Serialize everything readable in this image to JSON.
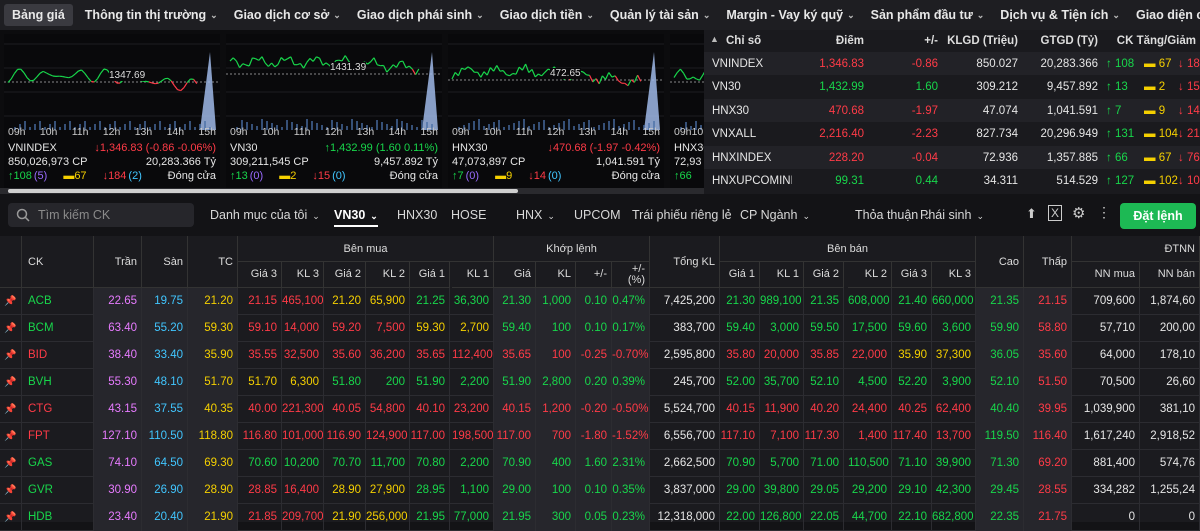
{
  "nav": [
    "Bảng giá",
    "Thông tin thị trường",
    "Giao dịch cơ sở",
    "Giao dịch phái sinh",
    "Giao dịch tiền",
    "Quản lý tài sản",
    "Margin - Vay ký quỹ",
    "Sản phẩm đầu tư",
    "Dịch vụ & Tiện ích",
    "Giao diện của tôi"
  ],
  "charts": [
    {
      "name": "VNINDEX",
      "ref_label": "1347.69",
      "value": "↓1,346.83 (-0.86 -0.06%)",
      "volume": "850,026,973 CP",
      "amount": "20,283.366 Tỷ",
      "up": "↑108",
      "up_ce": "(5)",
      "ref": "▬67",
      "dn": "↓184",
      "dn_fl": "(2)",
      "status": "Đóng cửa",
      "dir": "dn"
    },
    {
      "name": "VN30",
      "ref_label": "1431.39",
      "value": "↑1,432.99 (1.60 0.11%)",
      "volume": "309,211,545 CP",
      "amount": "9,457.892 Tỷ",
      "up": "↑13",
      "up_ce": "(0)",
      "ref": "▬2",
      "dn": "↓15",
      "dn_fl": "(0)",
      "status": "Đóng cửa",
      "dir": "up"
    },
    {
      "name": "HNX30",
      "ref_label": "472.65",
      "value": "↓470.68 (-1.97 -0.42%)",
      "volume": "47,073,897 CP",
      "amount": "1,041.591 Tỷ",
      "up": "↑7",
      "up_ce": "(0)",
      "ref": "▬9",
      "dn": "↓14",
      "dn_fl": "(0)",
      "status": "Đóng cửa",
      "dir": "dn"
    },
    {
      "name": "HNX30",
      "ref_label": "",
      "value": "",
      "volume": "72,93",
      "amount": "",
      "up": "↑66",
      "up_ce": "",
      "ref": "",
      "dn": "",
      "dn_fl": "",
      "status": "",
      "dir": "dn"
    }
  ],
  "time_labels": [
    "09h",
    "10h",
    "11h",
    "12h",
    "13h",
    "14h",
    "15h"
  ],
  "index_table": {
    "headers": [
      "Chỉ số",
      "Điểm",
      "+/-",
      "KLGD (Triệu)",
      "GTGD (Tỷ)",
      "CK Tăng/Giảm"
    ],
    "rows": [
      {
        "name": "VNINDEX",
        "point": "1,346.83",
        "change": "-0.86",
        "vol": "850.027",
        "val": "20,283.366",
        "up": "↑ 108",
        "ref": "▬ 67",
        "dn": "↓ 184",
        "c": "dn"
      },
      {
        "name": "VN30",
        "point": "1,432.99",
        "change": "1.60",
        "vol": "309.212",
        "val": "9,457.892",
        "up": "↑ 13",
        "ref": "▬ 2",
        "dn": "↓ 15",
        "c": "up"
      },
      {
        "name": "HNX30",
        "point": "470.68",
        "change": "-1.97",
        "vol": "47.074",
        "val": "1,041.591",
        "up": "↑ 7",
        "ref": "▬ 9",
        "dn": "↓ 14",
        "c": "dn"
      },
      {
        "name": "VNXALL",
        "point": "2,216.40",
        "change": "-2.23",
        "vol": "827.734",
        "val": "20,296.949",
        "up": "↑ 131",
        "ref": "▬ 104",
        "dn": "↓ 215",
        "c": "dn"
      },
      {
        "name": "HNXINDEX",
        "point": "228.20",
        "change": "-0.04",
        "vol": "72.936",
        "val": "1,357.885",
        "up": "↑ 66",
        "ref": "▬ 67",
        "dn": "↓ 76",
        "c": "dn"
      },
      {
        "name": "HNXUPCOMINDEX",
        "point": "99.31",
        "change": "0.44",
        "vol": "34.311",
        "val": "514.529",
        "up": "↑ 127",
        "ref": "▬ 102",
        "dn": "↓ 104",
        "c": "up"
      }
    ]
  },
  "filter": {
    "search_placeholder": "Tìm kiếm CK",
    "tabs": [
      "Danh mục của tôi",
      "VN30",
      "HNX30",
      "HOSE",
      "HNX",
      "UPCOM",
      "Trái phiếu riêng lẻ",
      "CP Ngành",
      "Thỏa thuận",
      "Phái sinh"
    ],
    "order_button": "Đặt lệnh"
  },
  "board_headers": {
    "ck": "CK",
    "ceil": "Trần",
    "floor": "Sàn",
    "ref": "TC",
    "buy": "Bên mua",
    "match": "Khớp lệnh",
    "total": "Tổng KL",
    "sell": "Bên bán",
    "high": "Cao",
    "low": "Thấp",
    "foreign": "ĐTNN",
    "g3": "Giá 3",
    "kl3": "KL 3",
    "g2": "Giá 2",
    "kl2": "KL 2",
    "g1": "Giá 1",
    "kl1": "KL 1",
    "mp": "Giá",
    "mkl": "KL",
    "pm": "+/-",
    "pct": "+/-\n(%)",
    "nn_buy": "NN mua",
    "nn_sell": "NN bán"
  },
  "rows": [
    [
      "ACB",
      "22.65",
      "19.75",
      "21.20",
      "21.15",
      "465,100",
      "21.20",
      "65,900",
      "21.25",
      "36,300",
      "21.30",
      "1,000",
      "0.10",
      "0.47%",
      "7,425,200",
      "21.30",
      "989,100",
      "21.35",
      "608,000",
      "21.40",
      "660,000",
      "21.35",
      "21.15",
      "709,600",
      "1,874,60"
    ],
    [
      "BCM",
      "63.40",
      "55.20",
      "59.30",
      "59.10",
      "14,000",
      "59.20",
      "7,500",
      "59.30",
      "2,700",
      "59.40",
      "100",
      "0.10",
      "0.17%",
      "383,700",
      "59.40",
      "3,000",
      "59.50",
      "17,500",
      "59.60",
      "3,600",
      "59.90",
      "58.80",
      "57,710",
      "200,00"
    ],
    [
      "BID",
      "38.40",
      "33.40",
      "35.90",
      "35.55",
      "32,500",
      "35.60",
      "36,200",
      "35.65",
      "112,400",
      "35.65",
      "100",
      "-0.25",
      "-0.70%",
      "2,595,800",
      "35.80",
      "20,000",
      "35.85",
      "22,000",
      "35.90",
      "37,300",
      "36.05",
      "35.60",
      "64,000",
      "178,10"
    ],
    [
      "BVH",
      "55.30",
      "48.10",
      "51.70",
      "51.70",
      "6,300",
      "51.80",
      "200",
      "51.90",
      "2,200",
      "51.90",
      "2,800",
      "0.20",
      "0.39%",
      "245,700",
      "52.00",
      "35,700",
      "52.10",
      "4,500",
      "52.20",
      "3,900",
      "52.10",
      "51.50",
      "70,500",
      "26,60"
    ],
    [
      "CTG",
      "43.15",
      "37.55",
      "40.35",
      "40.00",
      "221,300",
      "40.05",
      "54,800",
      "40.10",
      "23,200",
      "40.15",
      "1,200",
      "-0.20",
      "-0.50%",
      "5,524,700",
      "40.15",
      "11,900",
      "40.20",
      "24,400",
      "40.25",
      "62,400",
      "40.40",
      "39.95",
      "1,039,900",
      "381,10"
    ],
    [
      "FPT",
      "127.10",
      "110.50",
      "118.80",
      "116.80",
      "101,000",
      "116.90",
      "124,900",
      "117.00",
      "198,500",
      "117.00",
      "700",
      "-1.80",
      "-1.52%",
      "6,556,700",
      "117.10",
      "7,100",
      "117.30",
      "1,400",
      "117.40",
      "13,700",
      "119.50",
      "116.40",
      "1,617,240",
      "2,918,52"
    ],
    [
      "GAS",
      "74.10",
      "64.50",
      "69.30",
      "70.60",
      "10,200",
      "70.70",
      "11,700",
      "70.80",
      "2,200",
      "70.90",
      "400",
      "1.60",
      "2.31%",
      "2,662,500",
      "70.90",
      "5,700",
      "71.00",
      "110,500",
      "71.10",
      "39,900",
      "71.30",
      "69.20",
      "881,400",
      "574,76"
    ],
    [
      "GVR",
      "30.90",
      "26.90",
      "28.90",
      "28.85",
      "16,400",
      "28.90",
      "27,900",
      "28.95",
      "1,100",
      "29.00",
      "100",
      "0.10",
      "0.35%",
      "3,837,000",
      "29.00",
      "39,800",
      "29.05",
      "29,200",
      "29.10",
      "42,300",
      "29.45",
      "28.55",
      "334,282",
      "1,255,24"
    ],
    [
      "HDB",
      "23.40",
      "20.40",
      "21.90",
      "21.85",
      "209,700",
      "21.90",
      "256,000",
      "21.95",
      "77,000",
      "21.95",
      "300",
      "0.05",
      "0.23%",
      "12,318,000",
      "22.00",
      "126,800",
      "22.05",
      "44,700",
      "22.10",
      "682,800",
      "22.35",
      "21.75",
      "0",
      "0"
    ]
  ],
  "colors": {
    "up": "#18d64b",
    "down": "#ff3b47",
    "ref": "#f5d000",
    "ceil": "#e77bff",
    "floor": "#41c6ff",
    "accent": "#1db954"
  }
}
